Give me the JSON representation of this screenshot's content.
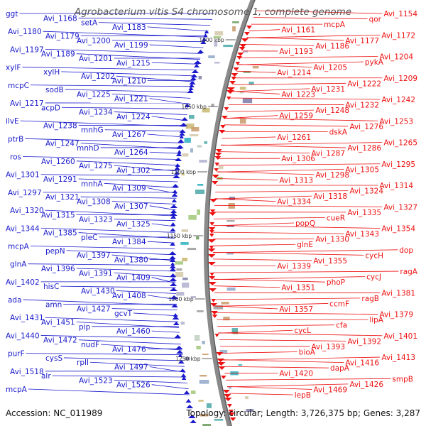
{
  "title": "Agrobacterium vitis S4 chromosome 1, complete genome",
  "accession_text": "Accession: NC_011989",
  "summary_text": "Topology: circular; Length: 3,726,375 bp; Genes: 3,287",
  "colors": {
    "plus_strand": "#1a1acc",
    "minus_strand": "#ee1111",
    "backbone": "#8a8a8a",
    "text": "#111111",
    "title": "#555555"
  },
  "ticks": [
    "1000 kbp",
    "1050 kbp",
    "1100 kbp",
    "1150 kbp",
    "1200 kbp",
    "1250 kbp"
  ],
  "plus_strand_labels": [
    "ggt",
    "Avi_1168",
    "setA",
    "Avi_1183",
    "Avi_1180",
    "Avi_1179",
    "Avi_1200",
    "Avi_1199",
    "Avi_1197",
    "Avi_1189",
    "Avi_1201",
    "Avi_1215",
    "xylF",
    "xylH",
    "Avi_1202",
    "Avi_1210",
    "mcpC",
    "sodB",
    "Avi_1225",
    "Avi_1221",
    "Avi_1217",
    "acpD",
    "Avi_1234",
    "Avi_1224",
    "ilvE",
    "Avi_1238",
    "mnhG",
    "Avi_1267",
    "ptrB",
    "Avi_1247",
    "mnhD",
    "Avi_1264",
    "ros",
    "Avi_1260",
    "Avi_1275",
    "Avi_1302",
    "Avi_1301",
    "Avi_1291",
    "mnhA",
    "Avi_1309",
    "Avi_1297",
    "Avi_1321",
    "Avi_1308",
    "Avi_1307",
    "Avi_1320",
    "Avi_1315",
    "Avi_1323",
    "Avi_1325",
    "Avi_1344",
    "Avi_1385",
    "pleC",
    "Avi_1384",
    "mcpA",
    "pepN",
    "Avi_1397",
    "Avi_1380",
    "glnA",
    "Avi_1396",
    "Avi_1391",
    "Avi_1409",
    "Avi_1402",
    "hisC",
    "Avi_1430",
    "Avi_1408",
    "ada",
    "amn",
    "Avi_1427",
    "gcvT",
    "Avi_1431",
    "Avi_1451",
    "pip",
    "Avi_1460",
    "Avi_1440",
    "Avi_1472",
    "nudF",
    "Avi_1476",
    "purF",
    "cysS",
    "rplI",
    "Avi_1497",
    "Avi_1518",
    "alr",
    "Avi_1523",
    "Avi_1526",
    "mcpA"
  ],
  "minus_strand_labels": [
    "Avi_1154",
    "qor",
    "mcpA",
    "Avi_1161",
    "Avi_1172",
    "Avi_1177",
    "Avi_1186",
    "Avi_1193",
    "Avi_1204",
    "pykA",
    "Avi_1205",
    "Avi_1214",
    "Avi_1209",
    "Avi_1222",
    "Avi_1231",
    "Avi_1223",
    "Avi_1242",
    "Avi_1232",
    "Avi_1248",
    "Avi_1259",
    "Avi_1253",
    "Avi_1276",
    "dskA",
    "Avi_1261",
    "Avi_1265",
    "Avi_1286",
    "Avi_1287",
    "Avi_1306",
    "Avi_1295",
    "Avi_1305",
    "Avi_1298",
    "Avi_1313",
    "Avi_1314",
    "Avi_1324",
    "Avi_1318",
    "Avi_1334",
    "Avi_1327",
    "Avi_1335",
    "cueR",
    "popQ",
    "Avi_1354",
    "Avi_1343",
    "Avi_1330",
    "glnE",
    "dop",
    "cycH",
    "Avi_1355",
    "Avi_1339",
    "ragA",
    "cycJ",
    "phoP",
    "Avi_1351",
    "Avi_1381",
    "ragB",
    "ccmF",
    "Avi_1357",
    "Avi_1379",
    "lipA",
    "cfa",
    "cycL",
    "Avi_1401",
    "Avi_1392",
    "Avi_1393",
    "bioA",
    "Avi_1413",
    "Avi_1416",
    "dapA",
    "Avi_1420",
    "smpB",
    "Avi_1426",
    "Avi_1469",
    "lepB"
  ]
}
